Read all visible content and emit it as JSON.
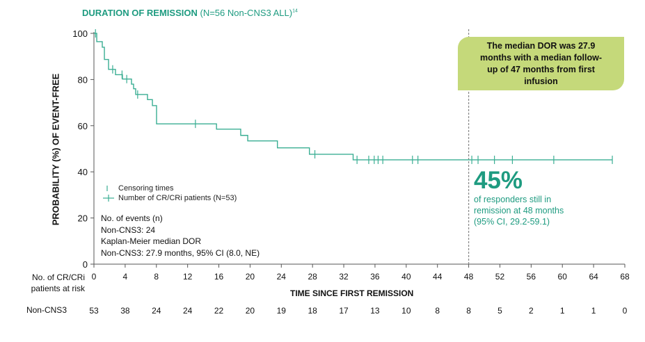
{
  "chart_data": {
    "type": "line",
    "subtype": "kaplan-meier",
    "title_bold": "DURATION OF REMISSION",
    "title_rest": "(N=56 Non-CNS3 ALL)",
    "title_sup": "14",
    "xlabel": "TIME SINCE FIRST REMISSION",
    "ylabel": "PROBABILITY (%) OF EVENT-FREE",
    "xlim": [
      0,
      68
    ],
    "ylim": [
      0,
      100
    ],
    "xticks": [
      0,
      4,
      8,
      12,
      16,
      20,
      24,
      28,
      32,
      36,
      40,
      44,
      48,
      52,
      56,
      60,
      64,
      68
    ],
    "yticks": [
      0,
      20,
      40,
      60,
      80,
      100
    ],
    "series": [
      {
        "name": "Number of CR/CRi patients (N=53)",
        "color": "#3aae93",
        "steps": [
          [
            0,
            100
          ],
          [
            0.36,
            96.4
          ],
          [
            1.07,
            94.0
          ],
          [
            1.34,
            88.7
          ],
          [
            1.87,
            84.4
          ],
          [
            2.76,
            82.1
          ],
          [
            3.65,
            80.2
          ],
          [
            4.81,
            78.0
          ],
          [
            5.08,
            76.0
          ],
          [
            5.35,
            73.5
          ],
          [
            6.86,
            71.3
          ],
          [
            7.49,
            68.7
          ],
          [
            8.02,
            60.8
          ],
          [
            15.7,
            58.5
          ],
          [
            18.8,
            55.8
          ],
          [
            19.7,
            53.4
          ],
          [
            23.5,
            50.4
          ],
          [
            27.6,
            47.6
          ],
          [
            33.2,
            45.2
          ],
          [
            66.4,
            45.2
          ]
        ],
        "censor_times": [
          0.2,
          2.4,
          3.6,
          4.2,
          5.6,
          13.0,
          28.3,
          33.7,
          35.2,
          35.9,
          36.4,
          37.0,
          40.8,
          41.5,
          48.4,
          49.2,
          51.3,
          53.6,
          58.9,
          66.4
        ]
      }
    ],
    "reference_line_x": 48,
    "legend": {
      "placement": "lower-left",
      "entries": [
        "Censoring times",
        "Number of CR/CRi patients (N=53)"
      ]
    },
    "stats_text": [
      "No. of events (n)",
      "Non-CNS3: 24",
      "Kaplan-Meier median DOR",
      "Non-CNS3: 27.9 months, 95% CI (8.0, NE)"
    ],
    "callout": "The median DOR was 27.9 months with a median follow-up of 47 months from first infusion",
    "highlight_value": "45%",
    "highlight_text": [
      "of responders still in",
      "remission at 48 months",
      "(95% CI, 29.2-59.1)"
    ],
    "risk_table": {
      "header": [
        "No. of CR/CRi",
        "patients at risk"
      ],
      "row_label": "Non-CNS3",
      "values": [
        53,
        38,
        24,
        24,
        22,
        20,
        19,
        18,
        17,
        13,
        10,
        8,
        8,
        5,
        2,
        1,
        1,
        0
      ]
    }
  }
}
